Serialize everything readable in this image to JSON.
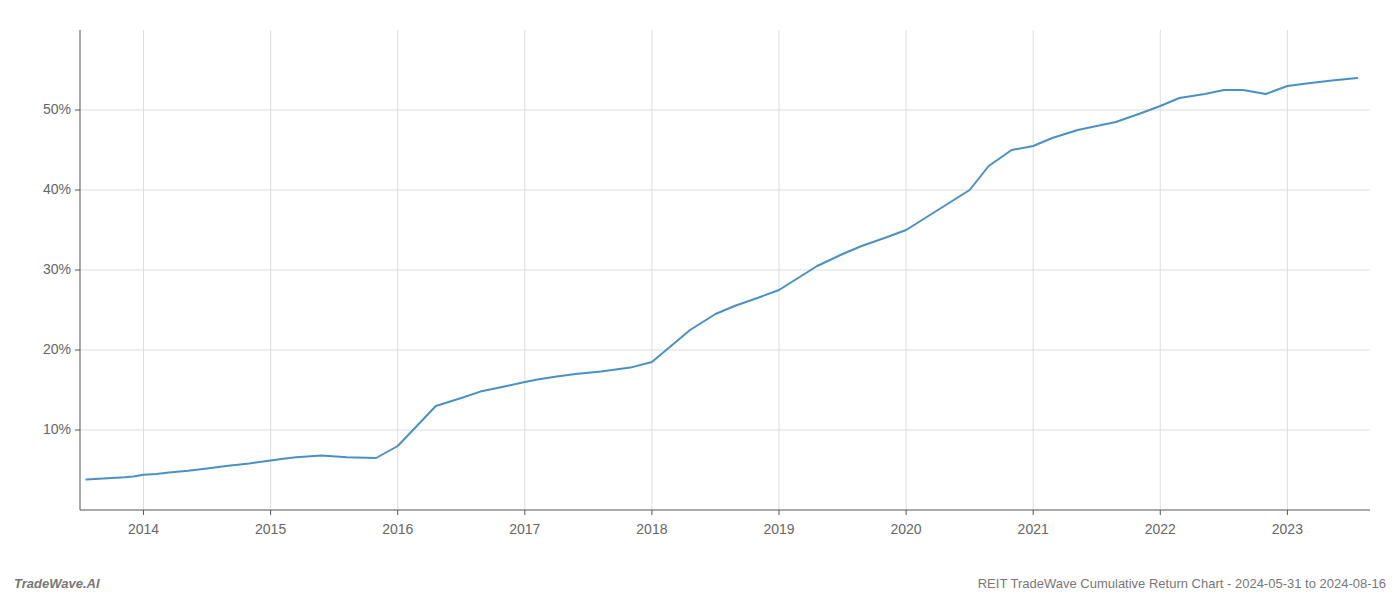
{
  "chart_data": {
    "type": "line",
    "title": "REIT TradeWave Cumulative Return Chart - 2024-05-31 to 2024-08-16",
    "annotations": [
      "TradeWave.AI"
    ],
    "x": [
      2013.55,
      2013.65,
      2013.75,
      2013.85,
      2013.92,
      2014.0,
      2014.1,
      2014.2,
      2014.35,
      2014.5,
      2014.65,
      2014.83,
      2015.0,
      2015.1,
      2015.2,
      2015.4,
      2015.6,
      2015.83,
      2016.0,
      2016.15,
      2016.3,
      2016.5,
      2016.65,
      2016.83,
      2017.0,
      2017.1,
      2017.25,
      2017.4,
      2017.6,
      2017.83,
      2018.0,
      2018.15,
      2018.3,
      2018.5,
      2018.65,
      2018.83,
      2019.0,
      2019.15,
      2019.3,
      2019.5,
      2019.65,
      2019.83,
      2020.0,
      2020.15,
      2020.35,
      2020.5,
      2020.65,
      2020.83,
      2021.0,
      2021.15,
      2021.35,
      2021.5,
      2021.65,
      2021.83,
      2022.0,
      2022.15,
      2022.35,
      2022.5,
      2022.65,
      2022.83,
      2023.0,
      2023.15,
      2023.35,
      2023.55
    ],
    "values": [
      3.8,
      3.9,
      4.0,
      4.1,
      4.2,
      4.4,
      4.5,
      4.7,
      4.9,
      5.2,
      5.5,
      5.8,
      6.2,
      6.4,
      6.6,
      6.8,
      6.6,
      6.5,
      8.0,
      10.5,
      13.0,
      14.0,
      14.8,
      15.4,
      16.0,
      16.3,
      16.7,
      17.0,
      17.3,
      17.8,
      18.5,
      20.5,
      22.5,
      24.5,
      25.5,
      26.5,
      27.5,
      29.0,
      30.5,
      32.0,
      33.0,
      34.0,
      35.0,
      36.5,
      38.5,
      40.0,
      43.0,
      45.0,
      45.5,
      46.5,
      47.5,
      48.0,
      48.5,
      49.5,
      50.5,
      51.5,
      52.0,
      52.5,
      52.5,
      52.0,
      53.0,
      53.3,
      53.7,
      54.0
    ],
    "color": "#4a90c4",
    "xlim": [
      2013.5,
      2023.65
    ],
    "xticks": [
      2014,
      2015,
      2016,
      2017,
      2018,
      2019,
      2020,
      2021,
      2022,
      2023
    ],
    "ylim": [
      0,
      60
    ],
    "yticks": [
      {
        "value": 10,
        "label": "10%"
      },
      {
        "value": 20,
        "label": "20%"
      },
      {
        "value": 30,
        "label": "30%"
      },
      {
        "value": 40,
        "label": "40%"
      },
      {
        "value": 50,
        "label": "50%"
      }
    ],
    "grid": true
  }
}
